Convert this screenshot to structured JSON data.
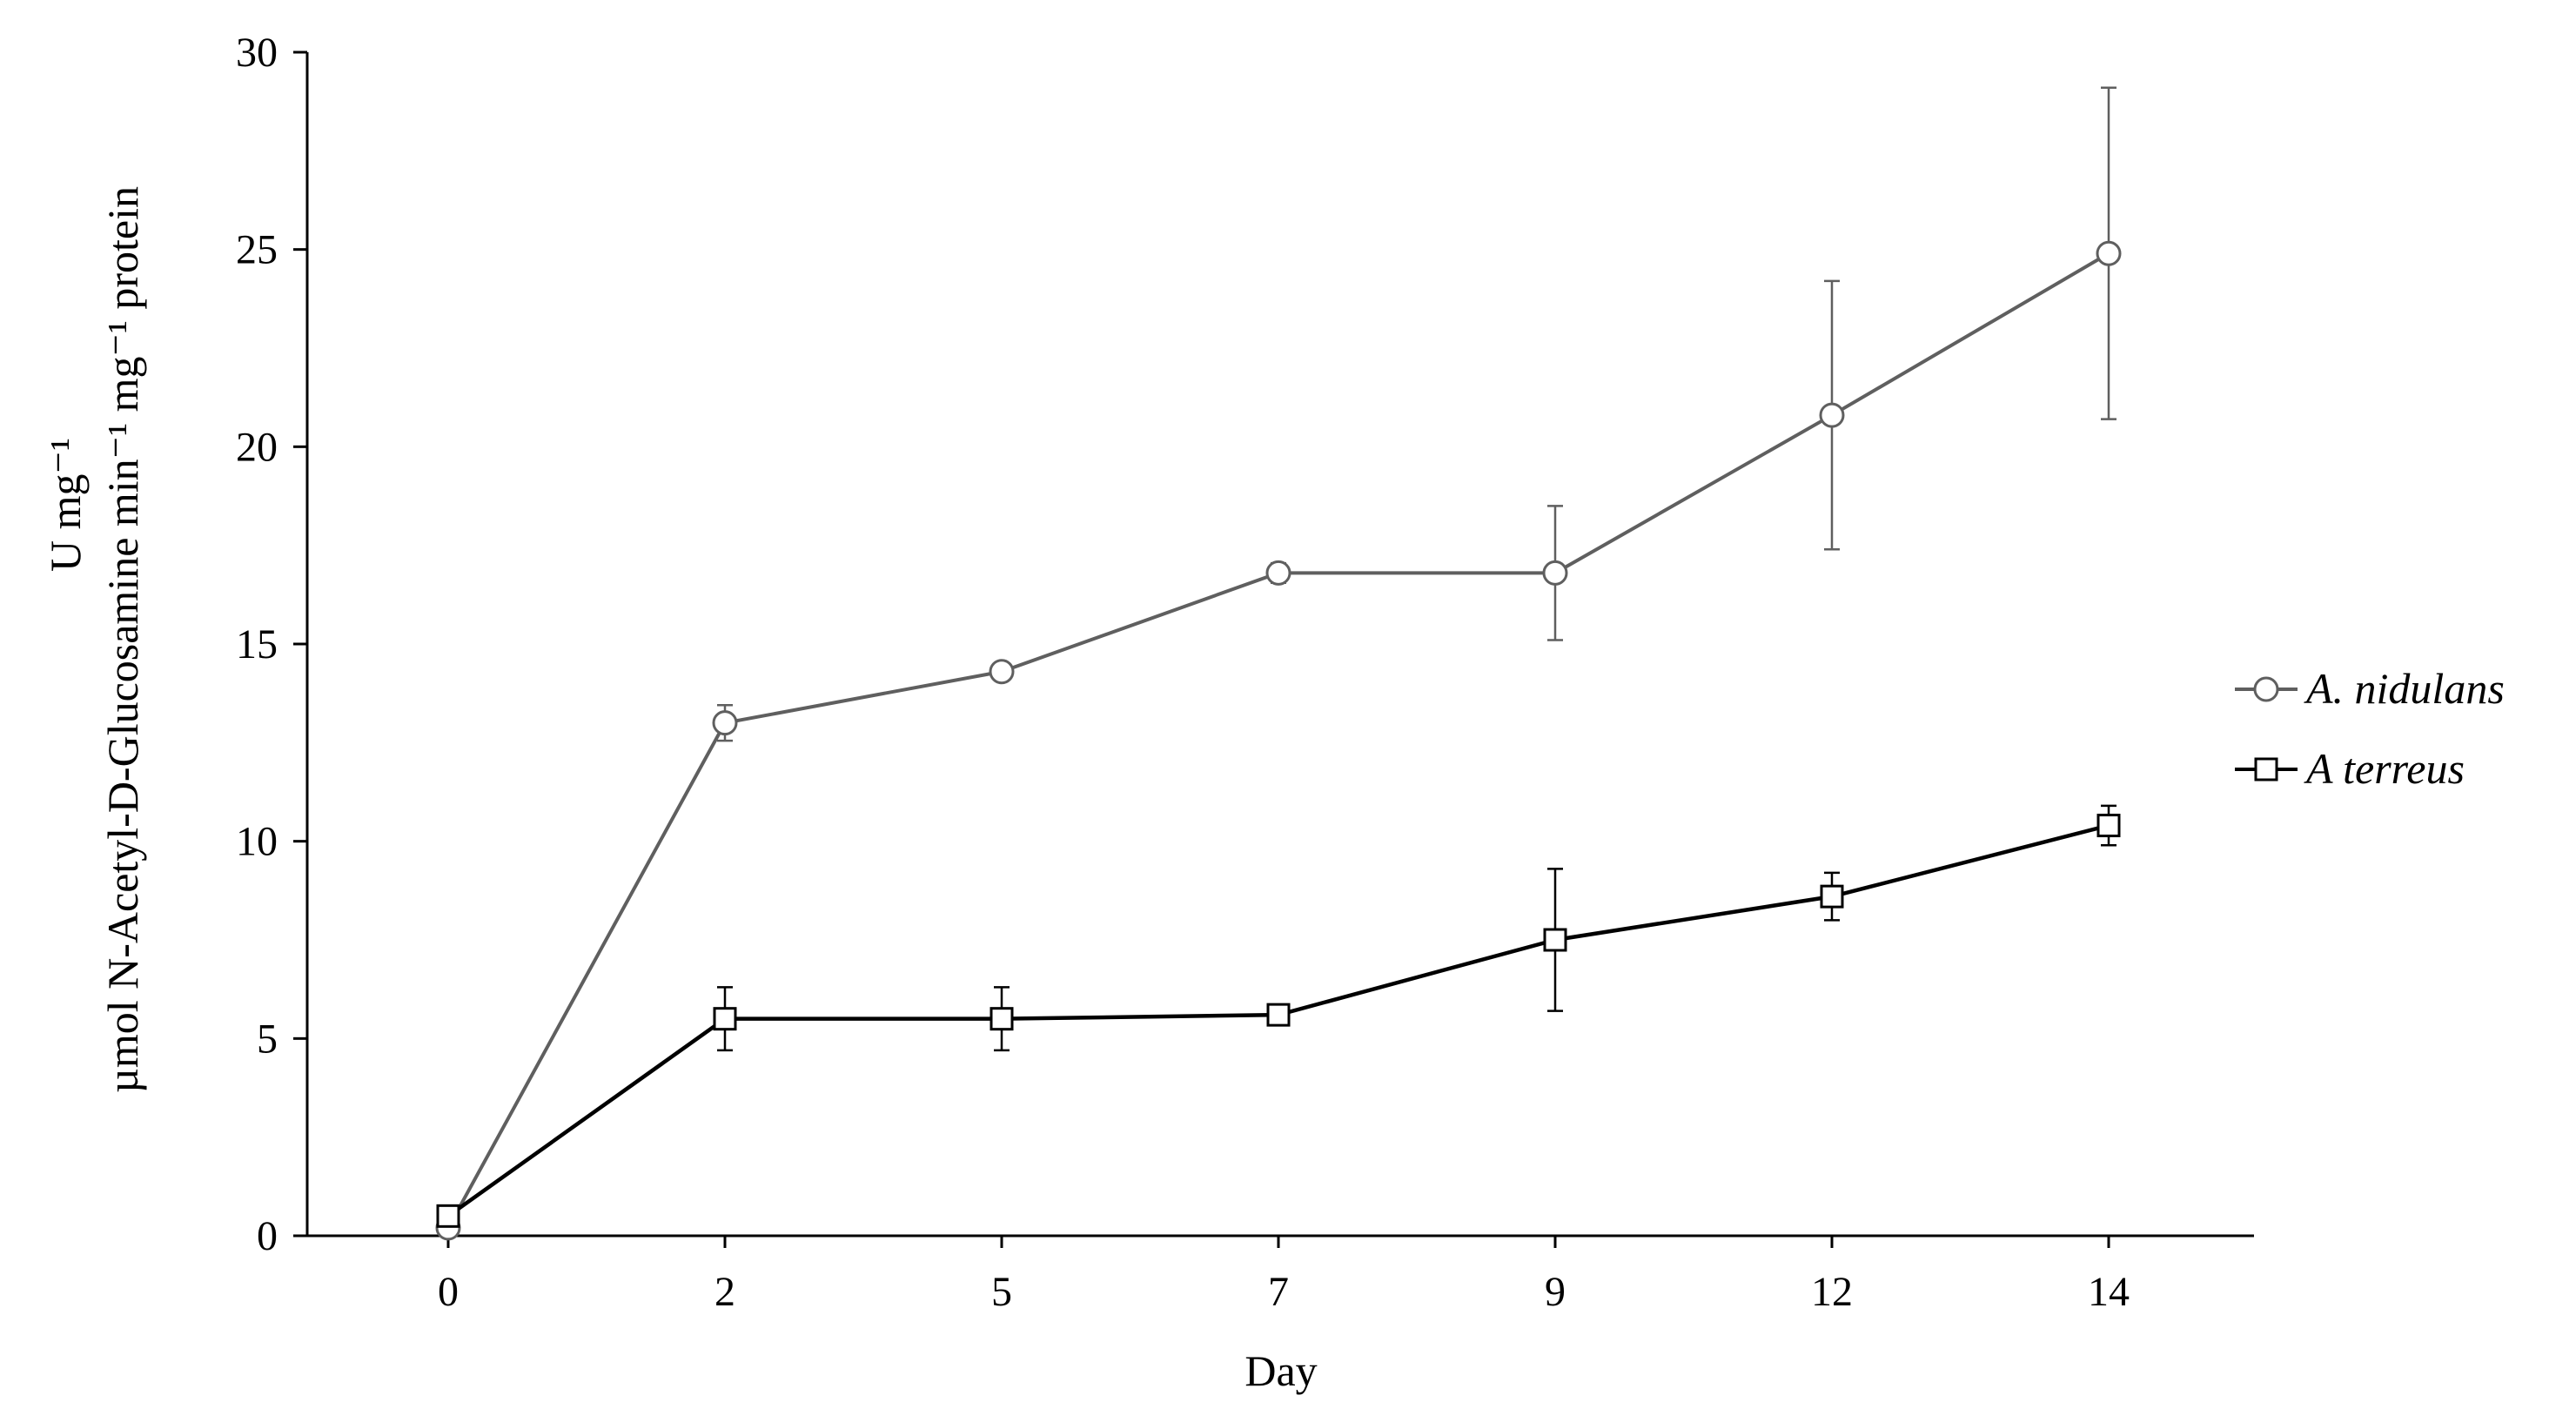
{
  "chart_data": {
    "type": "line",
    "xlabel": "Day",
    "ylabel_line1": "U mg⁻¹",
    "ylabel_line2": "µmol N-Acetyl-D-Glucosamine  min⁻¹ mg⁻¹  protein",
    "categories": [
      "0",
      "2",
      "5",
      "7",
      "9",
      "12",
      "14"
    ],
    "ylim": [
      0,
      30
    ],
    "yticks": [
      0,
      5,
      10,
      15,
      20,
      25,
      30
    ],
    "grid": false,
    "legend_position": "right",
    "series": [
      {
        "name": "A. nidulans",
        "marker": "circle",
        "color": "#5f5f5f",
        "values": [
          0.2,
          13.0,
          14.3,
          16.8,
          16.8,
          20.8,
          24.9
        ],
        "errors": [
          0.2,
          0.45,
          0.2,
          0.25,
          1.7,
          3.4,
          4.2
        ]
      },
      {
        "name": "A terreus",
        "marker": "square",
        "color": "#000000",
        "values": [
          0.5,
          5.5,
          5.5,
          5.6,
          7.5,
          8.6,
          10.4
        ],
        "errors": [
          0.2,
          0.8,
          0.8,
          0.15,
          1.8,
          0.6,
          0.5
        ]
      }
    ]
  }
}
